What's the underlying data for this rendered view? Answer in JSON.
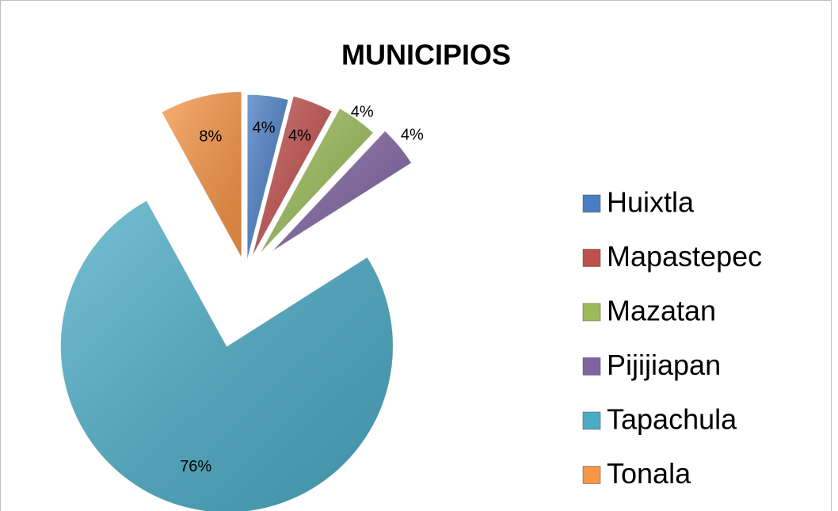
{
  "chart_data": {
    "type": "pie",
    "title": "MUNICIPIOS",
    "categories": [
      "Huixtla",
      "Mapastepec",
      "Mazatan",
      "Pijijiapan",
      "Tapachula",
      "Tonala"
    ],
    "values": [
      4,
      4,
      4,
      4,
      76,
      8
    ],
    "value_labels": [
      "4%",
      "4%",
      "4%",
      "4%",
      "76%",
      "8%"
    ],
    "colors": [
      "#4a7ec4",
      "#c0504d",
      "#9bbb59",
      "#8064a2",
      "#4bacc6",
      "#f79646"
    ],
    "legend": "right"
  }
}
